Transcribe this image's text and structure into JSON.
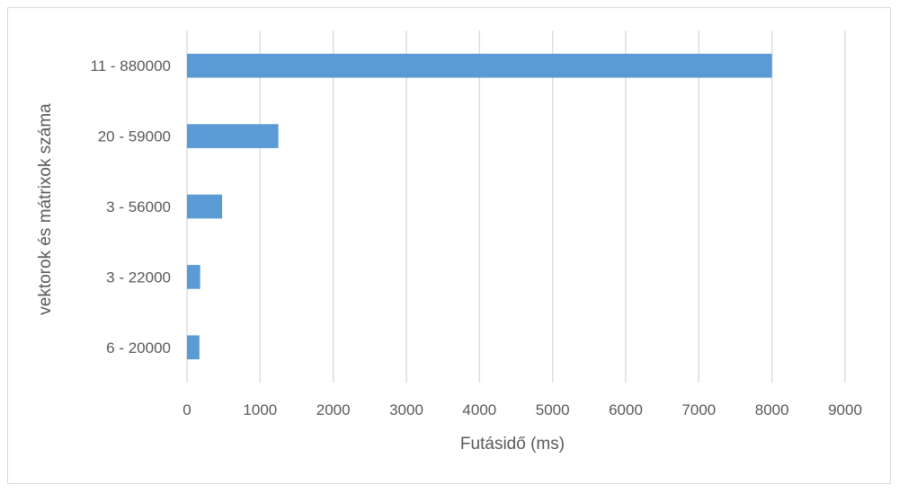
{
  "chart_data": {
    "type": "bar",
    "orientation": "horizontal",
    "categories": [
      "11 - 880000",
      "20 - 59000",
      "3 - 56000",
      "3 - 22000",
      "6 - 20000"
    ],
    "values": [
      8000,
      1250,
      480,
      180,
      170
    ],
    "xlabel": "Futásidő (ms)",
    "ylabel": "vektorok és mátrixok száma",
    "xlim": [
      0,
      9000
    ],
    "xticks": [
      0,
      1000,
      2000,
      3000,
      4000,
      5000,
      6000,
      7000,
      8000,
      9000
    ],
    "grid": "vertical",
    "legend": "none",
    "bar_color": "#5b9bd5",
    "grid_color": "#d9d9d9",
    "text_color": "#595959"
  }
}
